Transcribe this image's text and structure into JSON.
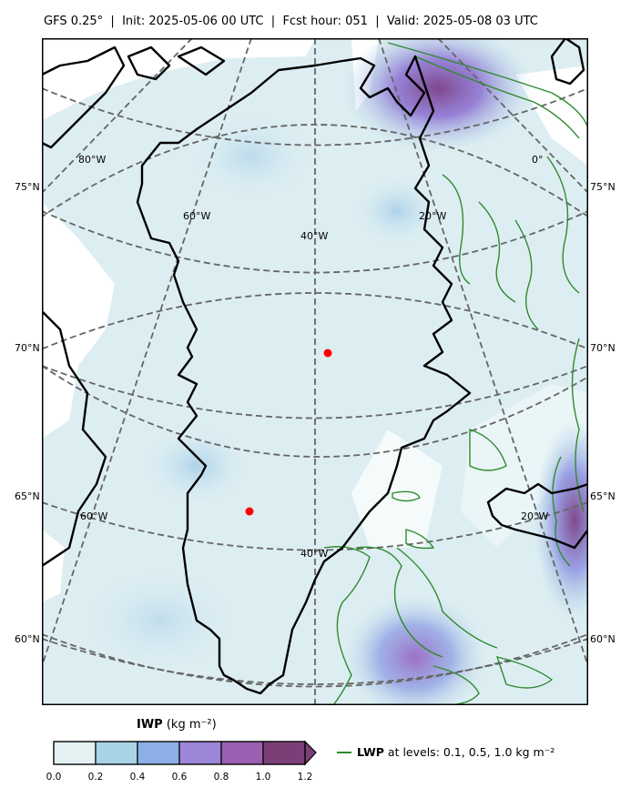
{
  "title": {
    "model": "GFS 0.25",
    "degree_symbol": "°",
    "init": "Init: 2025-05-06 00 UTC",
    "fcst": "Fcst hour: 051",
    "valid": "Valid: 2025-05-08 03 UTC",
    "separator": "|"
  },
  "map": {
    "lat_labels": [
      "75°N",
      "70°N",
      "65°N",
      "60°N"
    ],
    "lon_labels": [
      "80°W",
      "60°W",
      "40°W",
      "20°W",
      "0°",
      "60°W",
      "40°W",
      "20°W"
    ],
    "markers": [
      {
        "name": "station-north",
        "color": "#ff0000"
      },
      {
        "name": "station-south",
        "color": "#ff0000"
      }
    ],
    "graticule_style": "dashed-gray",
    "coastline_color": "#000000",
    "lwp_contour_color": "#2e8b2e"
  },
  "colorbar": {
    "variable": "IWP",
    "units": "(kg m⁻²)",
    "ticks": [
      "0.0",
      "0.2",
      "0.4",
      "0.6",
      "0.8",
      "1.0",
      "1.2"
    ],
    "colors": [
      "#e3f1f3",
      "#a8d3e6",
      "#8cb0e5",
      "#9b86d8",
      "#9a5fb0",
      "#7b3f78"
    ],
    "extend": "max"
  },
  "legend": {
    "label_bold": "LWP",
    "label_rest": " at levels: 0.1, 0.5, 1.0  kg m⁻²"
  }
}
